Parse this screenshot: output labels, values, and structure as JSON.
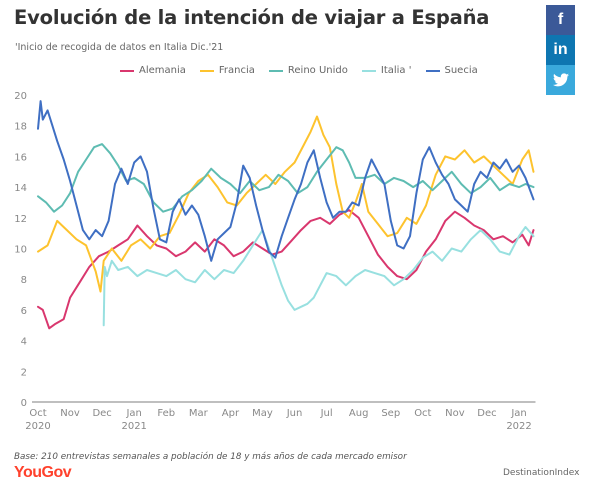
{
  "header": {
    "title": "Evolución de la intención de viajar a España",
    "subtitle": "'Inicio de recogida de datos en Italia Dic.'21"
  },
  "social": {
    "facebook_label": "f",
    "linkedin_label": "in",
    "twitter_icon": "twitter-bird-icon"
  },
  "footer": {
    "base_note": "Base: 210 entrevistas semanales a población de 18 y más años de cada mercado emisor",
    "logo": "YouGov",
    "source": "DestinationIndex"
  },
  "chart_data": {
    "type": "line",
    "title": "Evolución de la intención de viajar a España",
    "subtitle": "'Inicio de recogida de datos en Italia Dic.'21",
    "xlabel": "",
    "ylabel": "",
    "ylim": [
      0,
      20
    ],
    "yticks": [
      0,
      2,
      4,
      6,
      8,
      10,
      12,
      14,
      16,
      18,
      20
    ],
    "xlim": [
      0,
      15.45
    ],
    "x_unit": "months since Oct 2020",
    "xticks": [
      {
        "pos": 0,
        "label": "Oct",
        "sublabel": "2020"
      },
      {
        "pos": 1,
        "label": "Nov",
        "sublabel": ""
      },
      {
        "pos": 2,
        "label": "Dec",
        "sublabel": ""
      },
      {
        "pos": 3,
        "label": "Jan",
        "sublabel": "2021"
      },
      {
        "pos": 4,
        "label": "Feb",
        "sublabel": ""
      },
      {
        "pos": 5,
        "label": "Mar",
        "sublabel": ""
      },
      {
        "pos": 6,
        "label": "Apr",
        "sublabel": ""
      },
      {
        "pos": 7,
        "label": "May",
        "sublabel": ""
      },
      {
        "pos": 8,
        "label": "Jun",
        "sublabel": ""
      },
      {
        "pos": 9,
        "label": "Jul",
        "sublabel": ""
      },
      {
        "pos": 10,
        "label": "Aug",
        "sublabel": ""
      },
      {
        "pos": 11,
        "label": "Sep",
        "sublabel": ""
      },
      {
        "pos": 12,
        "label": "Oct",
        "sublabel": ""
      },
      {
        "pos": 13,
        "label": "Nov",
        "sublabel": ""
      },
      {
        "pos": 14,
        "label": "Dec",
        "sublabel": ""
      },
      {
        "pos": 15,
        "label": "Jan",
        "sublabel": "2022"
      }
    ],
    "grid": false,
    "legend_position": "top-center",
    "series": [
      {
        "name": "Alemania",
        "color": "#d9376e",
        "x": [
          0.0,
          0.15,
          0.35,
          0.55,
          0.8,
          1.0,
          1.3,
          1.6,
          1.9,
          2.2,
          2.5,
          2.8,
          3.1,
          3.4,
          3.7,
          4.0,
          4.3,
          4.6,
          4.9,
          5.2,
          5.5,
          5.8,
          6.1,
          6.4,
          6.7,
          7.0,
          7.3,
          7.6,
          7.9,
          8.2,
          8.5,
          8.8,
          9.1,
          9.4,
          9.7,
          10.0,
          10.3,
          10.6,
          10.9,
          11.2,
          11.5,
          11.8,
          12.1,
          12.4,
          12.7,
          13.0,
          13.3,
          13.6,
          13.9,
          14.2,
          14.5,
          14.8,
          15.1,
          15.3,
          15.45
        ],
        "y": [
          6.2,
          6.0,
          4.8,
          5.1,
          5.4,
          6.8,
          7.8,
          8.8,
          9.5,
          9.8,
          10.2,
          10.6,
          11.5,
          10.8,
          10.2,
          10.0,
          9.5,
          9.8,
          10.4,
          9.8,
          10.6,
          10.2,
          9.5,
          9.8,
          10.4,
          10.0,
          9.6,
          9.8,
          10.5,
          11.2,
          11.8,
          12.0,
          11.6,
          12.2,
          12.5,
          12.0,
          10.8,
          9.6,
          8.8,
          8.2,
          8.0,
          8.6,
          9.8,
          10.6,
          11.8,
          12.4,
          12.0,
          11.5,
          11.2,
          10.6,
          10.8,
          10.4,
          10.9,
          10.2,
          11.2
        ]
      },
      {
        "name": "Francia",
        "color": "#fdc32e",
        "x": [
          0.0,
          0.3,
          0.6,
          0.9,
          1.2,
          1.5,
          1.8,
          1.95,
          2.05,
          2.3,
          2.6,
          2.9,
          3.2,
          3.5,
          3.8,
          4.1,
          4.4,
          4.7,
          5.0,
          5.3,
          5.6,
          5.9,
          6.2,
          6.5,
          6.8,
          7.1,
          7.4,
          7.7,
          8.0,
          8.3,
          8.5,
          8.7,
          8.9,
          9.1,
          9.3,
          9.5,
          9.7,
          9.9,
          10.1,
          10.3,
          10.6,
          10.9,
          11.2,
          11.5,
          11.8,
          12.1,
          12.4,
          12.7,
          13.0,
          13.3,
          13.6,
          13.9,
          14.2,
          14.5,
          14.8,
          15.1,
          15.3,
          15.45
        ],
        "y": [
          9.8,
          10.2,
          11.8,
          11.2,
          10.6,
          10.2,
          8.5,
          7.2,
          9.2,
          10.0,
          9.2,
          10.2,
          10.6,
          10.0,
          10.8,
          11.0,
          12.2,
          13.6,
          14.4,
          14.8,
          14.0,
          13.0,
          12.8,
          13.6,
          14.2,
          14.8,
          14.2,
          15.0,
          15.6,
          16.8,
          17.6,
          18.6,
          17.4,
          16.6,
          14.2,
          12.4,
          12.0,
          13.0,
          14.2,
          12.4,
          11.6,
          10.8,
          11.0,
          12.0,
          11.6,
          12.8,
          14.8,
          16.0,
          15.8,
          16.4,
          15.6,
          16.0,
          15.4,
          14.8,
          14.2,
          15.8,
          16.4,
          15.0
        ]
      },
      {
        "name": "Reino Unido",
        "color": "#5ebcb2",
        "x": [
          0.0,
          0.25,
          0.5,
          0.75,
          1.0,
          1.25,
          1.5,
          1.75,
          2.0,
          2.25,
          2.5,
          2.75,
          3.0,
          3.3,
          3.6,
          3.9,
          4.2,
          4.5,
          4.8,
          5.1,
          5.4,
          5.7,
          6.0,
          6.3,
          6.6,
          6.9,
          7.2,
          7.5,
          7.8,
          8.1,
          8.4,
          8.7,
          9.0,
          9.3,
          9.5,
          9.7,
          9.9,
          10.2,
          10.5,
          10.8,
          11.1,
          11.4,
          11.7,
          12.0,
          12.3,
          12.6,
          12.9,
          13.2,
          13.5,
          13.8,
          14.1,
          14.4,
          14.7,
          15.0,
          15.2,
          15.45
        ],
        "y": [
          13.4,
          13.0,
          12.4,
          12.8,
          13.6,
          15.0,
          15.8,
          16.6,
          16.8,
          16.2,
          15.4,
          14.4,
          14.6,
          14.2,
          13.0,
          12.4,
          12.6,
          13.4,
          13.8,
          14.4,
          15.2,
          14.6,
          14.2,
          13.6,
          14.4,
          13.8,
          14.0,
          14.8,
          14.4,
          13.6,
          14.0,
          15.0,
          15.8,
          16.6,
          16.4,
          15.6,
          14.6,
          14.6,
          14.8,
          14.2,
          14.6,
          14.4,
          14.0,
          14.4,
          13.8,
          14.4,
          15.0,
          14.2,
          13.6,
          14.0,
          14.6,
          13.8,
          14.2,
          14.0,
          14.2,
          14.0
        ]
      },
      {
        "name": "Italia '",
        "color": "#98e0e0",
        "x": [
          2.05,
          2.08,
          2.15,
          2.3,
          2.5,
          2.8,
          3.1,
          3.4,
          3.7,
          4.0,
          4.3,
          4.6,
          4.9,
          5.2,
          5.5,
          5.8,
          6.1,
          6.4,
          6.7,
          7.0,
          7.2,
          7.4,
          7.6,
          7.8,
          8.0,
          8.2,
          8.4,
          8.6,
          8.8,
          9.0,
          9.3,
          9.6,
          9.9,
          10.2,
          10.5,
          10.8,
          11.1,
          11.4,
          11.7,
          12.0,
          12.3,
          12.6,
          12.9,
          13.2,
          13.5,
          13.8,
          14.1,
          14.4,
          14.7,
          15.0,
          15.2,
          15.45
        ],
        "y": [
          5.0,
          8.8,
          8.2,
          9.2,
          8.6,
          8.8,
          8.2,
          8.6,
          8.4,
          8.2,
          8.6,
          8.0,
          7.8,
          8.6,
          8.0,
          8.6,
          8.4,
          9.2,
          10.2,
          11.2,
          10.0,
          8.8,
          7.6,
          6.6,
          6.0,
          6.2,
          6.4,
          6.8,
          7.6,
          8.4,
          8.2,
          7.6,
          8.2,
          8.6,
          8.4,
          8.2,
          7.6,
          8.0,
          8.6,
          9.4,
          9.8,
          9.2,
          10.0,
          9.8,
          10.6,
          11.2,
          10.6,
          9.8,
          9.6,
          10.8,
          11.4,
          10.8
        ]
      },
      {
        "name": "Suecia",
        "color": "#3f6fc3",
        "x": [
          0.0,
          0.08,
          0.15,
          0.3,
          0.45,
          0.6,
          0.8,
          1.0,
          1.2,
          1.4,
          1.6,
          1.8,
          2.0,
          2.2,
          2.4,
          2.6,
          2.8,
          3.0,
          3.2,
          3.4,
          3.6,
          3.8,
          4.0,
          4.2,
          4.4,
          4.6,
          4.8,
          5.0,
          5.2,
          5.4,
          5.6,
          5.8,
          6.0,
          6.2,
          6.4,
          6.6,
          6.8,
          7.0,
          7.2,
          7.4,
          7.6,
          7.8,
          8.0,
          8.2,
          8.4,
          8.6,
          8.8,
          9.0,
          9.2,
          9.4,
          9.6,
          9.8,
          10.0,
          10.2,
          10.4,
          10.6,
          10.8,
          11.0,
          11.2,
          11.4,
          11.6,
          11.8,
          12.0,
          12.2,
          12.4,
          12.6,
          12.8,
          13.0,
          13.2,
          13.4,
          13.6,
          13.8,
          14.0,
          14.2,
          14.4,
          14.6,
          14.8,
          15.0,
          15.2,
          15.45
        ],
        "y": [
          17.8,
          19.6,
          18.4,
          19.0,
          18.0,
          17.0,
          15.8,
          14.4,
          12.8,
          11.2,
          10.6,
          11.2,
          10.8,
          11.8,
          14.2,
          15.2,
          14.2,
          15.6,
          16.0,
          15.0,
          12.6,
          10.6,
          10.4,
          12.4,
          13.2,
          12.2,
          12.8,
          12.2,
          10.8,
          9.2,
          10.6,
          11.0,
          11.4,
          13.0,
          15.4,
          14.6,
          12.8,
          11.2,
          9.8,
          9.4,
          10.8,
          12.0,
          13.2,
          14.2,
          15.6,
          16.4,
          14.6,
          13.0,
          12.0,
          12.4,
          12.4,
          13.0,
          12.8,
          14.6,
          15.8,
          15.0,
          14.2,
          11.8,
          10.2,
          10.0,
          10.8,
          13.6,
          15.8,
          16.6,
          15.6,
          14.8,
          14.2,
          13.2,
          12.8,
          12.4,
          14.2,
          15.0,
          14.6,
          15.6,
          15.2,
          15.8,
          15.0,
          15.4,
          14.6,
          13.2
        ]
      }
    ]
  }
}
